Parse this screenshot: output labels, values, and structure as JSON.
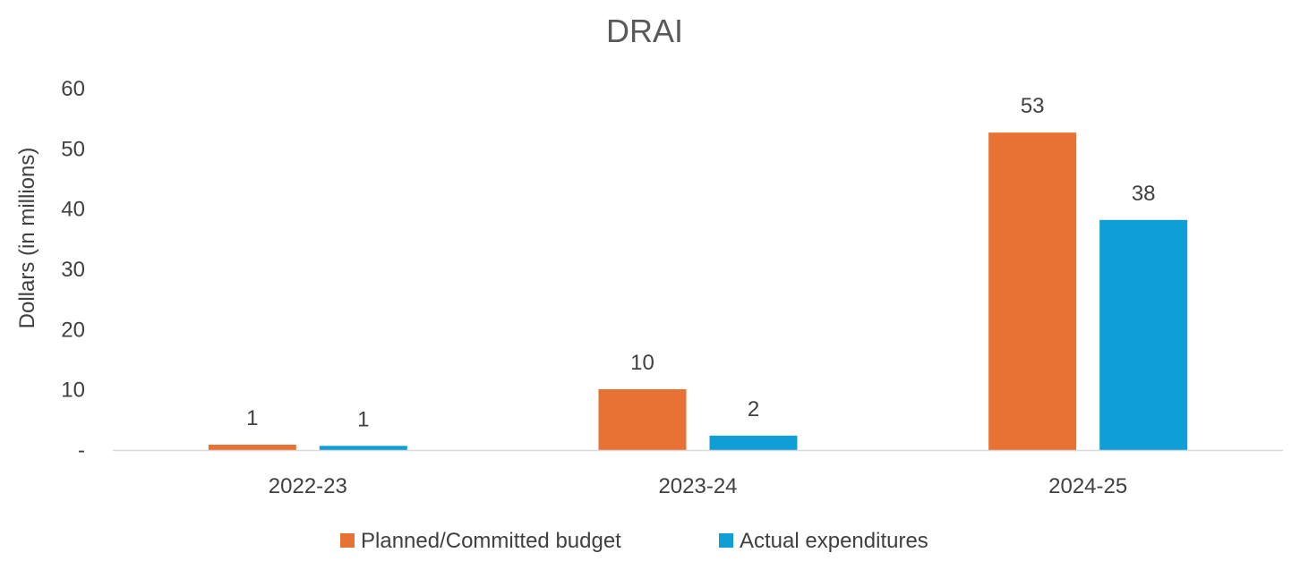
{
  "chart_data": {
    "type": "bar",
    "title": "DRAI",
    "xlabel": "",
    "ylabel": "Dollars (in millions)",
    "categories": [
      "2022-23",
      "2023-24",
      "2024-25"
    ],
    "series": [
      {
        "name": "Planned/Committed budget",
        "color": "#E87234",
        "values": [
          0.9,
          10.1,
          52.7
        ],
        "labels": [
          "1",
          "10",
          "53"
        ]
      },
      {
        "name": "Actual expenditures",
        "color": "#0F9FD6",
        "values": [
          0.7,
          2.4,
          38.2
        ],
        "labels": [
          "1",
          "2",
          "38"
        ]
      }
    ],
    "ylim": [
      0,
      60
    ],
    "yticks": [
      0,
      10,
      20,
      30,
      40,
      50,
      60
    ],
    "ytick_labels": [
      "-",
      "10",
      "20",
      "30",
      "40",
      "50",
      "60"
    ],
    "grid": false,
    "legend_position": "bottom",
    "colors": {
      "axis_line": "#D9D9D9",
      "text": "#404040",
      "title": "#595959"
    }
  }
}
